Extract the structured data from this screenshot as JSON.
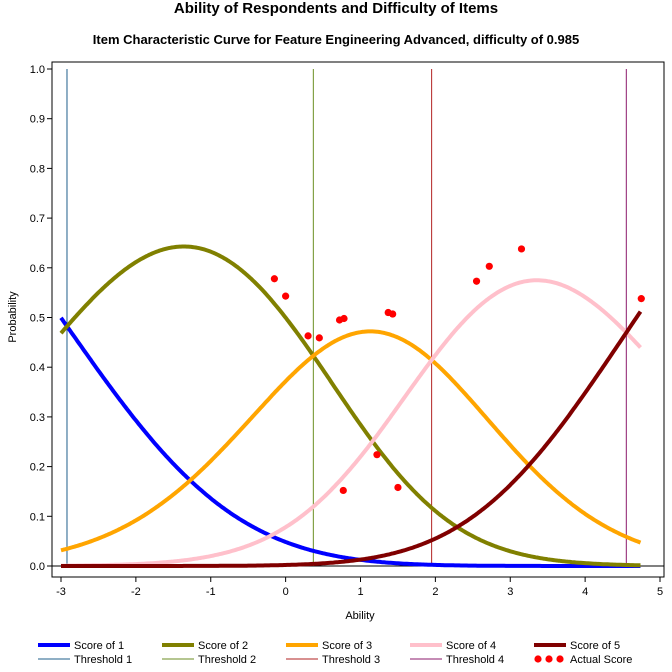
{
  "chart_data": {
    "type": "line",
    "title": "Ability of Respondents and Difficulty of Items",
    "subtitle": "Item Characteristic Curve for Feature Engineering Advanced, difficulty of 0.985",
    "xlabel": "Ability",
    "ylabel": "Probability",
    "xlim": [
      -3,
      5
    ],
    "ylim": [
      0,
      1
    ],
    "x_ticks": [
      "-3",
      "-2",
      "-1",
      "0",
      "1",
      "2",
      "3",
      "4",
      "5"
    ],
    "y_ticks": [
      "0.0",
      "0.1",
      "0.2",
      "0.3",
      "0.4",
      "0.5",
      "0.6",
      "0.7",
      "0.8",
      "0.9",
      "1.0"
    ],
    "x_range": [
      -3,
      4.75
    ],
    "thresholds": [
      {
        "name": "Threshold 1",
        "value": -2.92,
        "color": "#1f5f8b"
      },
      {
        "name": "Threshold 2",
        "value": 0.37,
        "color": "#6b8e23"
      },
      {
        "name": "Threshold 3",
        "value": 1.95,
        "color": "#b22222"
      },
      {
        "name": "Threshold 4",
        "value": 4.55,
        "color": "#8b1a6b"
      }
    ],
    "series": [
      {
        "name": "Score of 1",
        "color": "#0000ff"
      },
      {
        "name": "Score of 2",
        "color": "#808000"
      },
      {
        "name": "Score of 3",
        "color": "#ffa500"
      },
      {
        "name": "Score of 4",
        "color": "#ffc0cb"
      },
      {
        "name": "Score of 5",
        "color": "#800000"
      }
    ],
    "actual_score": {
      "name": "Actual Score",
      "color": "#ff0000",
      "points": [
        {
          "x": -0.15,
          "y": 0.578
        },
        {
          "x": 0.0,
          "y": 0.543
        },
        {
          "x": 0.3,
          "y": 0.463
        },
        {
          "x": 0.45,
          "y": 0.459
        },
        {
          "x": 0.72,
          "y": 0.495
        },
        {
          "x": 0.78,
          "y": 0.498
        },
        {
          "x": 1.37,
          "y": 0.51
        },
        {
          "x": 1.43,
          "y": 0.507
        },
        {
          "x": 2.55,
          "y": 0.573
        },
        {
          "x": 2.72,
          "y": 0.603
        },
        {
          "x": 3.15,
          "y": 0.638
        },
        {
          "x": 4.75,
          "y": 0.538
        },
        {
          "x": 1.22,
          "y": 0.224
        },
        {
          "x": 1.5,
          "y": 0.158
        },
        {
          "x": 0.77,
          "y": 0.152
        }
      ]
    }
  }
}
